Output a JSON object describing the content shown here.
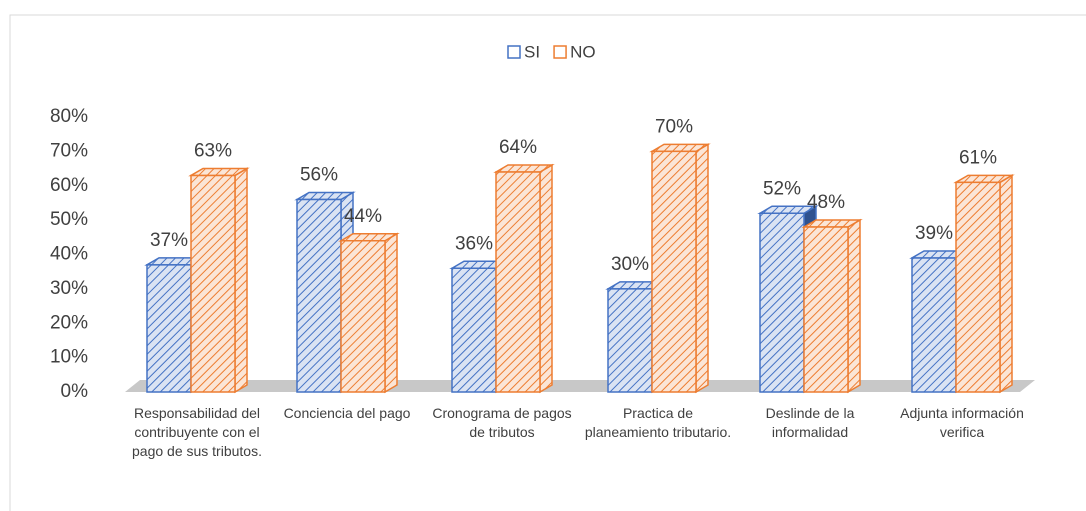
{
  "chart_data": {
    "type": "bar3d",
    "categories": [
      "Responsabilidad del contribuyente con el pago de sus tributos.",
      "Conciencia del pago",
      "Cronograma de pagos de tributos",
      "Practica de planeamiento tributario.",
      "Deslinde de la informalidad",
      "Adjunta información verifica"
    ],
    "series": [
      {
        "name": "SI",
        "color": "#4472c4",
        "values": [
          37,
          56,
          36,
          30,
          52,
          39
        ],
        "value_labels": [
          "37%",
          "56%",
          "36%",
          "30%",
          "52%",
          "39%"
        ]
      },
      {
        "name": "NO",
        "color": "#ed7d31",
        "values": [
          63,
          44,
          64,
          70,
          48,
          61
        ],
        "value_labels": [
          "63%",
          "44%",
          "64%",
          "70%",
          "48%",
          "61%"
        ]
      }
    ],
    "ylim": [
      0,
      80
    ],
    "yticks": [
      {
        "value": 0,
        "label": "0%"
      },
      {
        "value": 10,
        "label": "10%"
      },
      {
        "value": 20,
        "label": "20%"
      },
      {
        "value": 30,
        "label": "30%"
      },
      {
        "value": 40,
        "label": "40%"
      },
      {
        "value": 50,
        "label": "50%"
      },
      {
        "value": 60,
        "label": "60%"
      },
      {
        "value": 70,
        "label": "70%"
      },
      {
        "value": 80,
        "label": "80%"
      }
    ],
    "legend": "top"
  }
}
